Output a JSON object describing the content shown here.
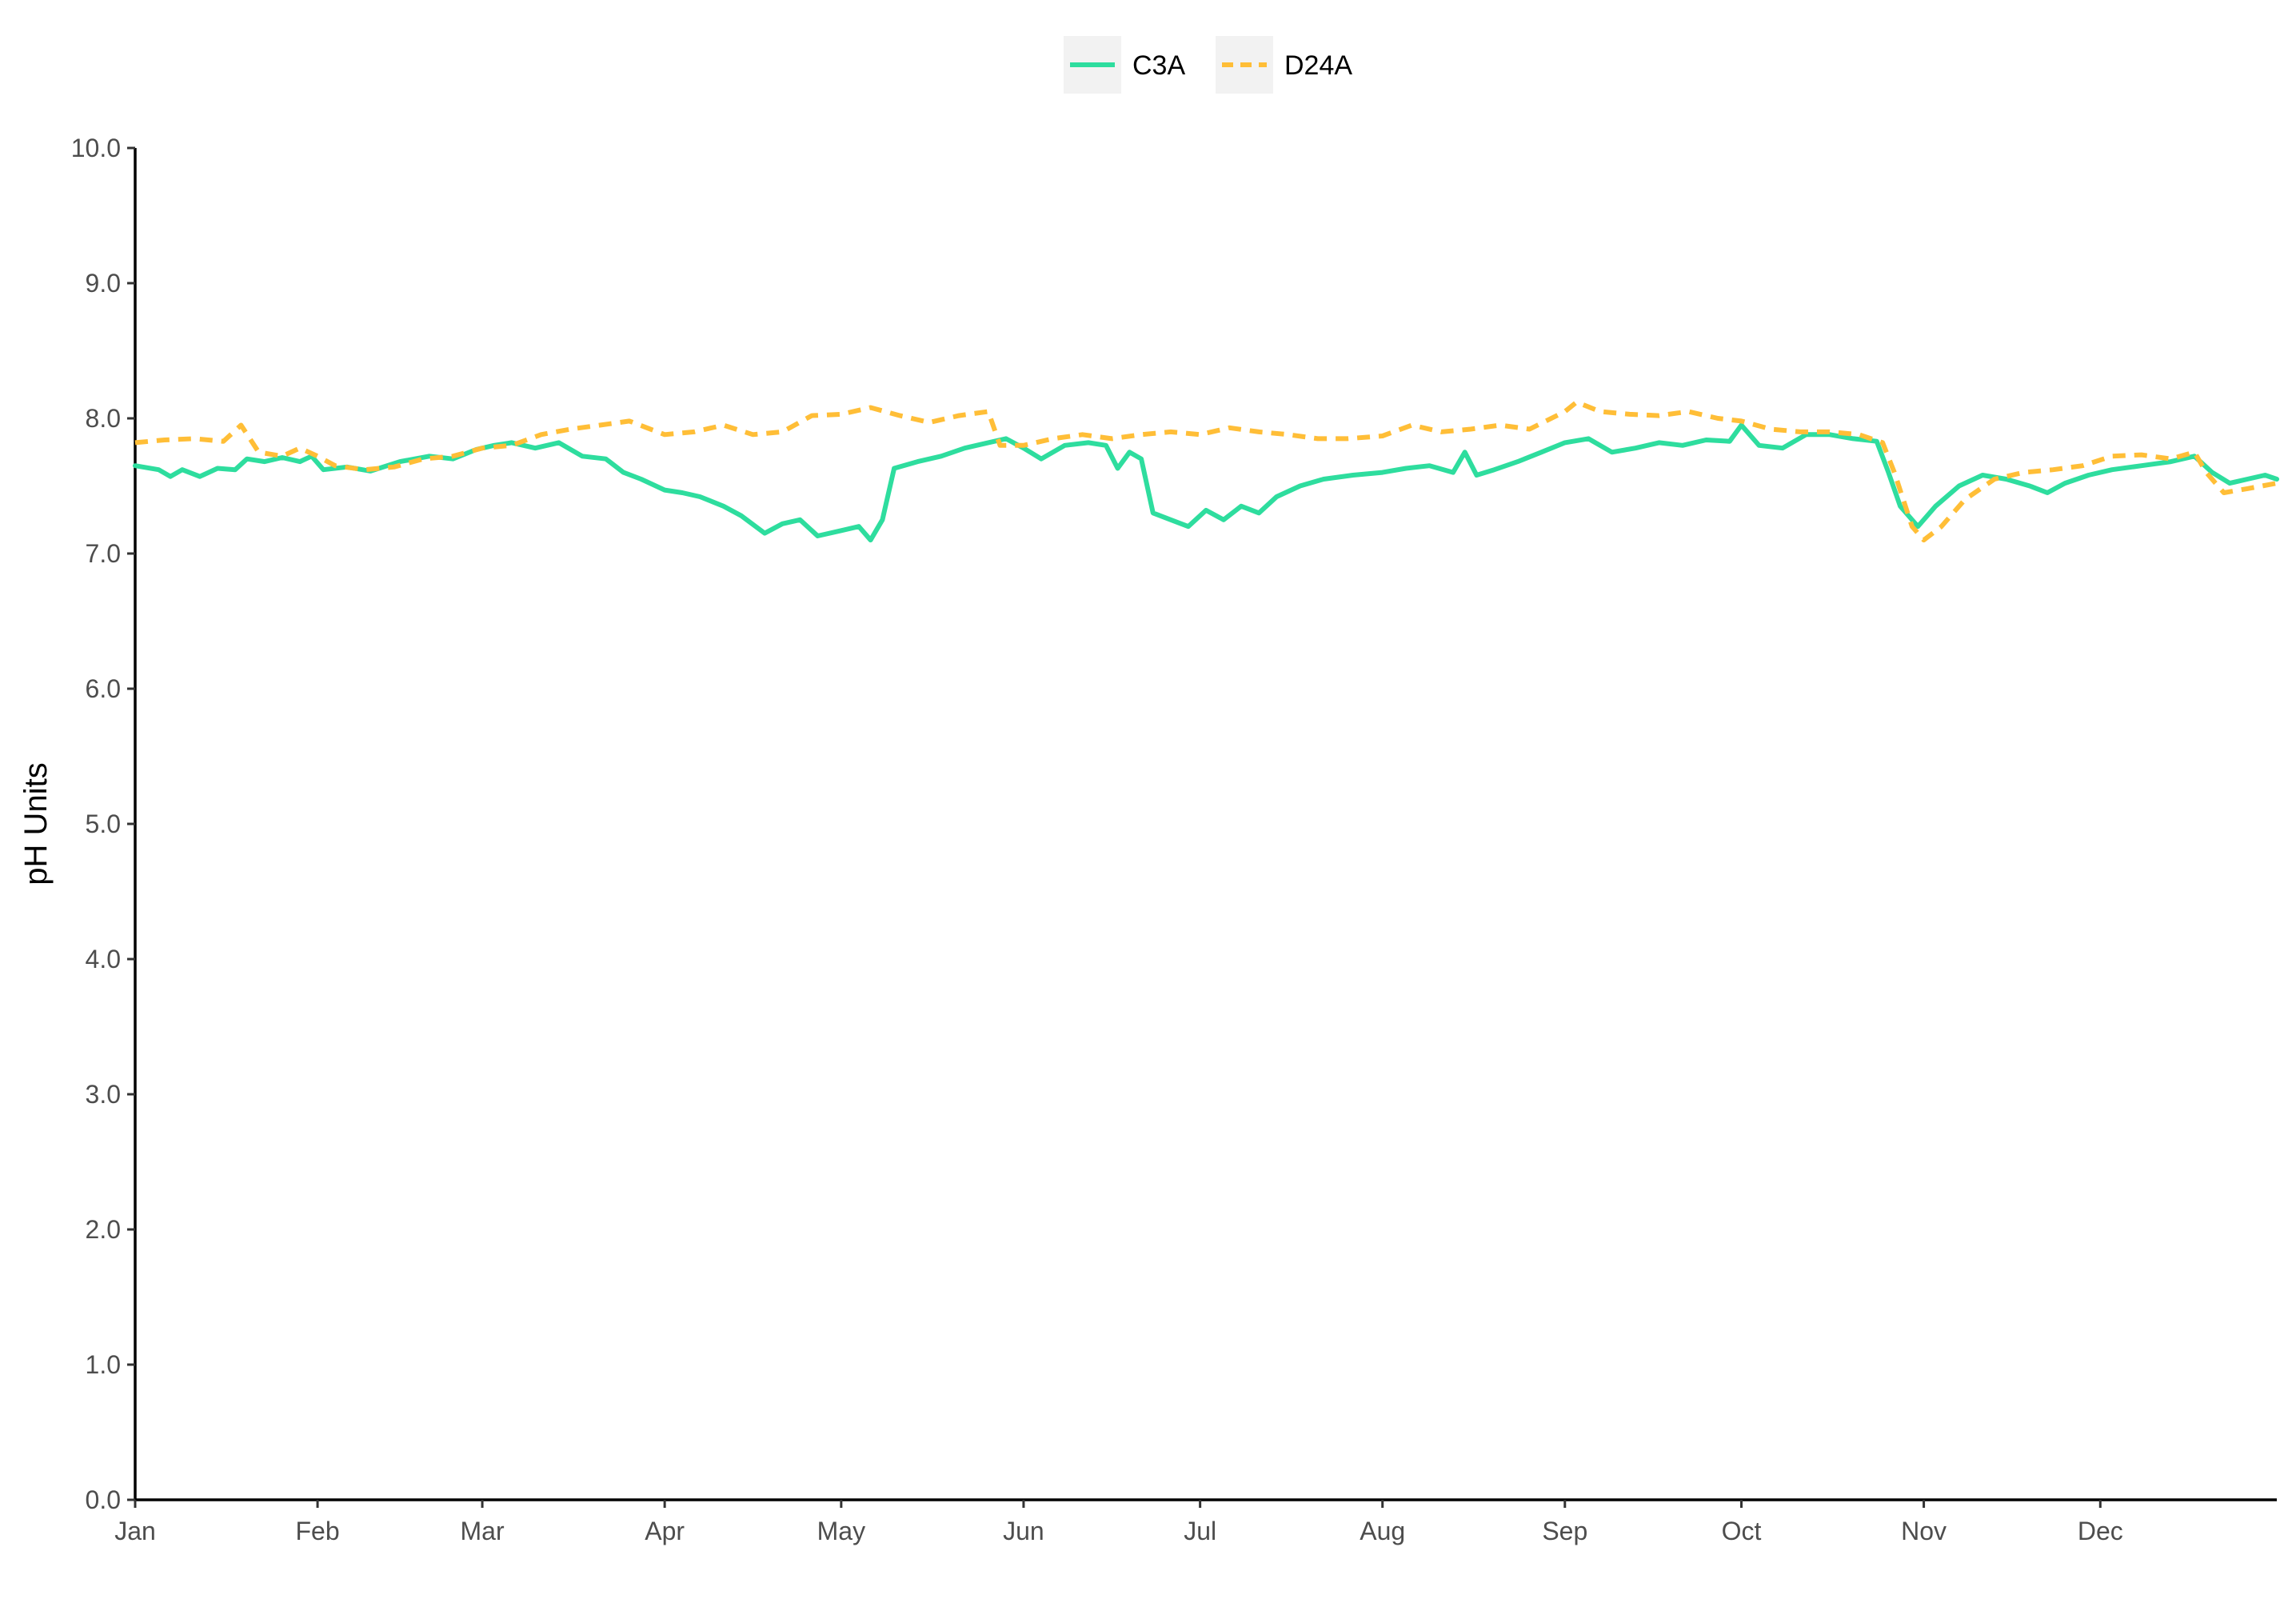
{
  "chart_data": {
    "type": "line",
    "title": "",
    "xlabel": "",
    "ylabel": "pH Units",
    "ylim": [
      0,
      10
    ],
    "xlim": [
      "2021-01-01",
      "2021-12-31"
    ],
    "y_ticks": [
      "0.0",
      "1.0",
      "2.0",
      "3.0",
      "4.0",
      "5.0",
      "6.0",
      "7.0",
      "8.0",
      "9.0",
      "10.0"
    ],
    "x_ticks": [
      {
        "label": "Jan",
        "date": "2021-01-01"
      },
      {
        "label": "Feb",
        "date": "2021-02-01"
      },
      {
        "label": "Mar",
        "date": "2021-03-01"
      },
      {
        "label": "Apr",
        "date": "2021-04-01"
      },
      {
        "label": "May",
        "date": "2021-05-01"
      },
      {
        "label": "Jun",
        "date": "2021-06-01"
      },
      {
        "label": "Jul",
        "date": "2021-07-01"
      },
      {
        "label": "Aug",
        "date": "2021-08-01"
      },
      {
        "label": "Sep",
        "date": "2021-09-01"
      },
      {
        "label": "Oct",
        "date": "2021-10-01"
      },
      {
        "label": "Nov",
        "date": "2021-11-01"
      },
      {
        "label": "Dec",
        "date": "2021-12-01"
      }
    ],
    "grid": false,
    "legend_position": "top",
    "series": [
      {
        "name": "C3A",
        "color": "#2EDD9E",
        "line_style": "solid",
        "points": [
          [
            "2021-01-01",
            7.65
          ],
          [
            "2021-01-05",
            7.62
          ],
          [
            "2021-01-07",
            7.57
          ],
          [
            "2021-01-09",
            7.62
          ],
          [
            "2021-01-12",
            7.57
          ],
          [
            "2021-01-15",
            7.63
          ],
          [
            "2021-01-18",
            7.62
          ],
          [
            "2021-01-20",
            7.7
          ],
          [
            "2021-01-23",
            7.68
          ],
          [
            "2021-01-26",
            7.71
          ],
          [
            "2021-01-29",
            7.68
          ],
          [
            "2021-01-31",
            7.72
          ],
          [
            "2021-02-02",
            7.62
          ],
          [
            "2021-02-06",
            7.64
          ],
          [
            "2021-02-10",
            7.61
          ],
          [
            "2021-02-15",
            7.68
          ],
          [
            "2021-02-20",
            7.72
          ],
          [
            "2021-02-24",
            7.7
          ],
          [
            "2021-02-28",
            7.77
          ],
          [
            "2021-03-03",
            7.8
          ],
          [
            "2021-03-06",
            7.82
          ],
          [
            "2021-03-10",
            7.78
          ],
          [
            "2021-03-14",
            7.82
          ],
          [
            "2021-03-18",
            7.72
          ],
          [
            "2021-03-22",
            7.7
          ],
          [
            "2021-03-25",
            7.6
          ],
          [
            "2021-03-28",
            7.55
          ],
          [
            "2021-04-01",
            7.47
          ],
          [
            "2021-04-04",
            7.45
          ],
          [
            "2021-04-07",
            7.42
          ],
          [
            "2021-04-11",
            7.35
          ],
          [
            "2021-04-14",
            7.28
          ],
          [
            "2021-04-18",
            7.15
          ],
          [
            "2021-04-21",
            7.22
          ],
          [
            "2021-04-24",
            7.25
          ],
          [
            "2021-04-27",
            7.13
          ],
          [
            "2021-05-01",
            7.17
          ],
          [
            "2021-05-04",
            7.2
          ],
          [
            "2021-05-06",
            7.1
          ],
          [
            "2021-05-08",
            7.25
          ],
          [
            "2021-05-10",
            7.63
          ],
          [
            "2021-05-14",
            7.68
          ],
          [
            "2021-05-18",
            7.72
          ],
          [
            "2021-05-22",
            7.78
          ],
          [
            "2021-05-26",
            7.82
          ],
          [
            "2021-05-29",
            7.85
          ],
          [
            "2021-06-01",
            7.78
          ],
          [
            "2021-06-04",
            7.7
          ],
          [
            "2021-06-08",
            7.8
          ],
          [
            "2021-06-12",
            7.82
          ],
          [
            "2021-06-15",
            7.8
          ],
          [
            "2021-06-17",
            7.63
          ],
          [
            "2021-06-19",
            7.75
          ],
          [
            "2021-06-21",
            7.7
          ],
          [
            "2021-06-23",
            7.3
          ],
          [
            "2021-06-26",
            7.25
          ],
          [
            "2021-06-29",
            7.2
          ],
          [
            "2021-07-02",
            7.32
          ],
          [
            "2021-07-05",
            7.25
          ],
          [
            "2021-07-08",
            7.35
          ],
          [
            "2021-07-11",
            7.3
          ],
          [
            "2021-07-14",
            7.42
          ],
          [
            "2021-07-18",
            7.5
          ],
          [
            "2021-07-22",
            7.55
          ],
          [
            "2021-07-27",
            7.58
          ],
          [
            "2021-08-01",
            7.6
          ],
          [
            "2021-08-05",
            7.63
          ],
          [
            "2021-08-09",
            7.65
          ],
          [
            "2021-08-13",
            7.6
          ],
          [
            "2021-08-15",
            7.75
          ],
          [
            "2021-08-17",
            7.58
          ],
          [
            "2021-08-20",
            7.62
          ],
          [
            "2021-08-24",
            7.68
          ],
          [
            "2021-08-28",
            7.75
          ],
          [
            "2021-09-01",
            7.82
          ],
          [
            "2021-09-05",
            7.85
          ],
          [
            "2021-09-09",
            7.75
          ],
          [
            "2021-09-13",
            7.78
          ],
          [
            "2021-09-17",
            7.82
          ],
          [
            "2021-09-21",
            7.8
          ],
          [
            "2021-09-25",
            7.84
          ],
          [
            "2021-09-29",
            7.83
          ],
          [
            "2021-10-01",
            7.95
          ],
          [
            "2021-10-04",
            7.8
          ],
          [
            "2021-10-08",
            7.78
          ],
          [
            "2021-10-12",
            7.88
          ],
          [
            "2021-10-16",
            7.88
          ],
          [
            "2021-10-20",
            7.85
          ],
          [
            "2021-10-24",
            7.83
          ],
          [
            "2021-10-26",
            7.6
          ],
          [
            "2021-10-28",
            7.35
          ],
          [
            "2021-10-31",
            7.2
          ],
          [
            "2021-11-03",
            7.35
          ],
          [
            "2021-11-07",
            7.5
          ],
          [
            "2021-11-11",
            7.58
          ],
          [
            "2021-11-15",
            7.55
          ],
          [
            "2021-11-19",
            7.5
          ],
          [
            "2021-11-22",
            7.45
          ],
          [
            "2021-11-25",
            7.52
          ],
          [
            "2021-11-29",
            7.58
          ],
          [
            "2021-12-03",
            7.62
          ],
          [
            "2021-12-08",
            7.65
          ],
          [
            "2021-12-13",
            7.68
          ],
          [
            "2021-12-17",
            7.72
          ],
          [
            "2021-12-20",
            7.6
          ],
          [
            "2021-12-23",
            7.52
          ],
          [
            "2021-12-26",
            7.55
          ],
          [
            "2021-12-29",
            7.58
          ],
          [
            "2021-12-31",
            7.55
          ]
        ]
      },
      {
        "name": "D24A",
        "color": "#FFBE37",
        "line_style": "dashed",
        "points": [
          [
            "2021-01-01",
            7.82
          ],
          [
            "2021-01-06",
            7.84
          ],
          [
            "2021-01-11",
            7.85
          ],
          [
            "2021-01-16",
            7.83
          ],
          [
            "2021-01-19",
            7.95
          ],
          [
            "2021-01-22",
            7.75
          ],
          [
            "2021-01-26",
            7.72
          ],
          [
            "2021-01-29",
            7.78
          ],
          [
            "2021-02-01",
            7.72
          ],
          [
            "2021-02-04",
            7.65
          ],
          [
            "2021-02-09",
            7.62
          ],
          [
            "2021-02-14",
            7.64
          ],
          [
            "2021-02-19",
            7.7
          ],
          [
            "2021-02-24",
            7.72
          ],
          [
            "2021-03-01",
            7.78
          ],
          [
            "2021-03-06",
            7.8
          ],
          [
            "2021-03-11",
            7.88
          ],
          [
            "2021-03-16",
            7.92
          ],
          [
            "2021-03-21",
            7.95
          ],
          [
            "2021-03-26",
            7.98
          ],
          [
            "2021-04-01",
            7.88
          ],
          [
            "2021-04-06",
            7.9
          ],
          [
            "2021-04-11",
            7.95
          ],
          [
            "2021-04-16",
            7.88
          ],
          [
            "2021-04-21",
            7.9
          ],
          [
            "2021-04-26",
            8.02
          ],
          [
            "2021-05-01",
            8.03
          ],
          [
            "2021-05-06",
            8.08
          ],
          [
            "2021-05-11",
            8.02
          ],
          [
            "2021-05-16",
            7.97
          ],
          [
            "2021-05-21",
            8.02
          ],
          [
            "2021-05-26",
            8.05
          ],
          [
            "2021-05-28",
            7.8
          ],
          [
            "2021-06-01",
            7.8
          ],
          [
            "2021-06-06",
            7.85
          ],
          [
            "2021-06-11",
            7.88
          ],
          [
            "2021-06-16",
            7.85
          ],
          [
            "2021-06-21",
            7.88
          ],
          [
            "2021-06-26",
            7.9
          ],
          [
            "2021-07-01",
            7.88
          ],
          [
            "2021-07-06",
            7.93
          ],
          [
            "2021-07-11",
            7.9
          ],
          [
            "2021-07-16",
            7.88
          ],
          [
            "2021-07-21",
            7.85
          ],
          [
            "2021-07-26",
            7.85
          ],
          [
            "2021-08-01",
            7.87
          ],
          [
            "2021-08-06",
            7.95
          ],
          [
            "2021-08-11",
            7.9
          ],
          [
            "2021-08-16",
            7.92
          ],
          [
            "2021-08-21",
            7.95
          ],
          [
            "2021-08-26",
            7.92
          ],
          [
            "2021-09-01",
            8.05
          ],
          [
            "2021-09-03",
            8.12
          ],
          [
            "2021-09-07",
            8.05
          ],
          [
            "2021-09-12",
            8.03
          ],
          [
            "2021-09-17",
            8.02
          ],
          [
            "2021-09-22",
            8.05
          ],
          [
            "2021-09-27",
            8.0
          ],
          [
            "2021-10-01",
            7.98
          ],
          [
            "2021-10-06",
            7.92
          ],
          [
            "2021-10-11",
            7.9
          ],
          [
            "2021-10-16",
            7.9
          ],
          [
            "2021-10-21",
            7.88
          ],
          [
            "2021-10-25",
            7.82
          ],
          [
            "2021-10-27",
            7.6
          ],
          [
            "2021-10-30",
            7.2
          ],
          [
            "2021-11-01",
            7.1
          ],
          [
            "2021-11-04",
            7.2
          ],
          [
            "2021-11-08",
            7.4
          ],
          [
            "2021-11-13",
            7.55
          ],
          [
            "2021-11-18",
            7.6
          ],
          [
            "2021-11-23",
            7.62
          ],
          [
            "2021-11-28",
            7.65
          ],
          [
            "2021-12-03",
            7.72
          ],
          [
            "2021-12-08",
            7.73
          ],
          [
            "2021-12-13",
            7.7
          ],
          [
            "2021-12-17",
            7.75
          ],
          [
            "2021-12-19",
            7.6
          ],
          [
            "2021-12-22",
            7.45
          ],
          [
            "2021-12-26",
            7.48
          ],
          [
            "2021-12-31",
            7.52
          ]
        ]
      }
    ]
  }
}
